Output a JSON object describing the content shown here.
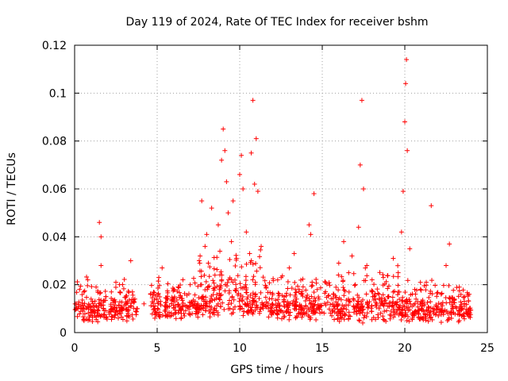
{
  "chart_data": {
    "type": "scatter",
    "title": "Day 119 of 2024, Rate Of TEC Index for receiver bshm",
    "xlabel": "GPS time / hours",
    "ylabel": "ROTI / TECUs",
    "xlim": [
      0,
      25
    ],
    "ylim": [
      0,
      0.12
    ],
    "x_ticks": [
      0,
      5,
      10,
      15,
      20,
      25
    ],
    "x_tick_labels": [
      "0",
      "5",
      "10",
      "15",
      "20",
      "25"
    ],
    "y_ticks": [
      0,
      0.02,
      0.04,
      0.06,
      0.08,
      0.1,
      0.12
    ],
    "y_tick_labels": [
      "0",
      "0.02",
      "0.04",
      "0.06",
      "0.08",
      "0.1",
      "0.12"
    ],
    "grid": true,
    "marker": "+",
    "series": [
      {
        "name": "ROTI",
        "color": "#ff0000",
        "x": [
          0.1,
          0.3,
          0.5,
          0.8,
          1.0,
          1.3,
          1.5,
          1.6,
          1.6,
          1.9,
          2.2,
          2.5,
          2.8,
          3.2,
          3.4,
          3.5,
          3.8,
          4.2,
          4.6,
          4.9,
          5.1,
          5.3,
          5.6,
          6.0,
          6.5,
          7.0,
          7.3,
          7.6,
          7.7,
          7.9,
          8.0,
          8.1,
          8.3,
          8.5,
          8.7,
          8.8,
          8.9,
          9.0,
          9.1,
          9.2,
          9.3,
          9.5,
          9.6,
          9.8,
          10.0,
          10.1,
          10.2,
          10.4,
          10.6,
          10.7,
          10.8,
          10.9,
          11.0,
          11.1,
          11.3,
          11.6,
          12.0,
          12.3,
          12.7,
          13.0,
          13.3,
          13.6,
          14.0,
          14.2,
          14.3,
          14.5,
          14.8,
          15.2,
          15.7,
          16.0,
          16.3,
          16.6,
          16.8,
          17.0,
          17.2,
          17.3,
          17.4,
          17.5,
          17.7,
          18.0,
          18.3,
          18.7,
          19.0,
          19.3,
          19.6,
          19.8,
          19.9,
          20.0,
          20.05,
          20.1,
          20.15,
          20.3,
          20.6,
          21.0,
          21.3,
          21.6,
          21.9,
          22.2,
          22.5,
          22.7,
          23.0,
          23.3,
          23.6,
          23.9
        ],
        "y": [
          0.012,
          0.018,
          0.009,
          0.022,
          0.014,
          0.019,
          0.046,
          0.04,
          0.028,
          0.015,
          0.011,
          0.021,
          0.008,
          0.013,
          0.03,
          0.017,
          0.01,
          0.012,
          0.016,
          0.009,
          0.023,
          0.027,
          0.014,
          0.018,
          0.011,
          0.02,
          0.013,
          0.032,
          0.055,
          0.036,
          0.041,
          0.029,
          0.052,
          0.024,
          0.045,
          0.034,
          0.072,
          0.085,
          0.076,
          0.063,
          0.05,
          0.038,
          0.055,
          0.031,
          0.066,
          0.074,
          0.06,
          0.042,
          0.033,
          0.075,
          0.097,
          0.062,
          0.081,
          0.059,
          0.036,
          0.019,
          0.012,
          0.022,
          0.015,
          0.027,
          0.033,
          0.018,
          0.011,
          0.045,
          0.041,
          0.058,
          0.014,
          0.021,
          0.016,
          0.029,
          0.038,
          0.025,
          0.032,
          0.02,
          0.044,
          0.07,
          0.097,
          0.06,
          0.028,
          0.017,
          0.012,
          0.023,
          0.015,
          0.031,
          0.025,
          0.042,
          0.059,
          0.088,
          0.104,
          0.114,
          0.076,
          0.035,
          0.018,
          0.013,
          0.021,
          0.053,
          0.011,
          0.016,
          0.028,
          0.037,
          0.014,
          0.019,
          0.011,
          0.016
        ]
      }
    ],
    "dense_band": [
      {
        "x0": 0.0,
        "x1": 3.8,
        "ymin": 0.004,
        "ymax": 0.021
      },
      {
        "x0": 4.6,
        "x1": 7.5,
        "ymin": 0.005,
        "ymax": 0.02
      },
      {
        "x0": 7.5,
        "x1": 11.7,
        "ymin": 0.006,
        "ymax": 0.032
      },
      {
        "x0": 11.7,
        "x1": 16.0,
        "ymin": 0.005,
        "ymax": 0.022
      },
      {
        "x0": 16.0,
        "x1": 20.5,
        "ymin": 0.004,
        "ymax": 0.024
      },
      {
        "x0": 20.5,
        "x1": 24.0,
        "ymin": 0.004,
        "ymax": 0.019
      }
    ]
  }
}
